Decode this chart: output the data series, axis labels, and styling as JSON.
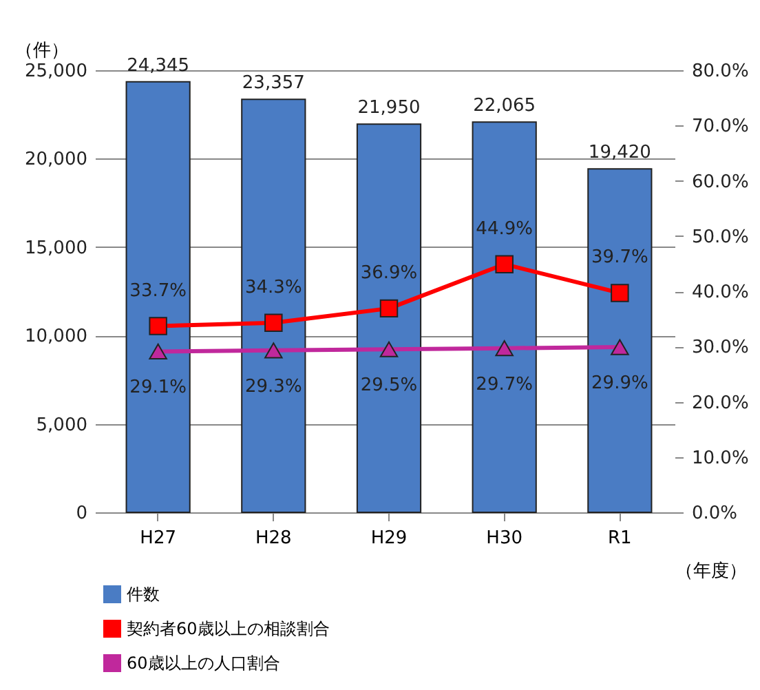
{
  "chart_data": {
    "type": "bar",
    "categories": [
      "H27",
      "H28",
      "H29",
      "H30",
      "R1"
    ],
    "ylabel": "（件）",
    "xlabel": "（年度）",
    "series": [
      {
        "name": "件数",
        "color": "#4a7cc4",
        "values": [
          24345,
          23357,
          21950,
          22065,
          19420
        ],
        "value_labels": [
          "24,345",
          "23,357",
          "21,950",
          "22,065",
          "19,420"
        ]
      },
      {
        "name": "契約者60歳以上の相談割合",
        "type": "line",
        "axis": "y2",
        "color": "#ff0000",
        "marker": "square",
        "values": [
          33.7,
          34.3,
          36.9,
          44.9,
          39.7
        ],
        "value_labels": [
          "33.7%",
          "34.3%",
          "36.9%",
          "44.9%",
          "39.7%"
        ]
      },
      {
        "name": "60歳以上の人口割合",
        "type": "line",
        "axis": "y2",
        "color": "#c0289c",
        "marker": "triangle",
        "values": [
          29.1,
          29.3,
          29.5,
          29.7,
          29.9
        ],
        "value_labels": [
          "29.1%",
          "29.3%",
          "29.5%",
          "29.7%",
          "29.9%"
        ]
      }
    ],
    "ylim": [
      0,
      25000
    ],
    "yticks": [
      {
        "value": 0,
        "label": "0"
      },
      {
        "value": 5000,
        "label": "5,000"
      },
      {
        "value": 10000,
        "label": "10,000"
      },
      {
        "value": 15000,
        "label": "15,000"
      },
      {
        "value": 20000,
        "label": "20,000"
      },
      {
        "value": 25000,
        "label": "25,000"
      }
    ],
    "y2lim": [
      0,
      80
    ],
    "y2ticks": [
      {
        "value": 0,
        "label": "0.0%"
      },
      {
        "value": 10,
        "label": "10.0%"
      },
      {
        "value": 20,
        "label": "20.0%"
      },
      {
        "value": 30,
        "label": "30.0%"
      },
      {
        "value": 40,
        "label": "40.0%"
      },
      {
        "value": 50,
        "label": "50.0%"
      },
      {
        "value": 60,
        "label": "60.0%"
      },
      {
        "value": 70,
        "label": "70.0%"
      },
      {
        "value": 80,
        "label": "80.0%"
      }
    ],
    "grid": "y",
    "legend": "bottom"
  }
}
